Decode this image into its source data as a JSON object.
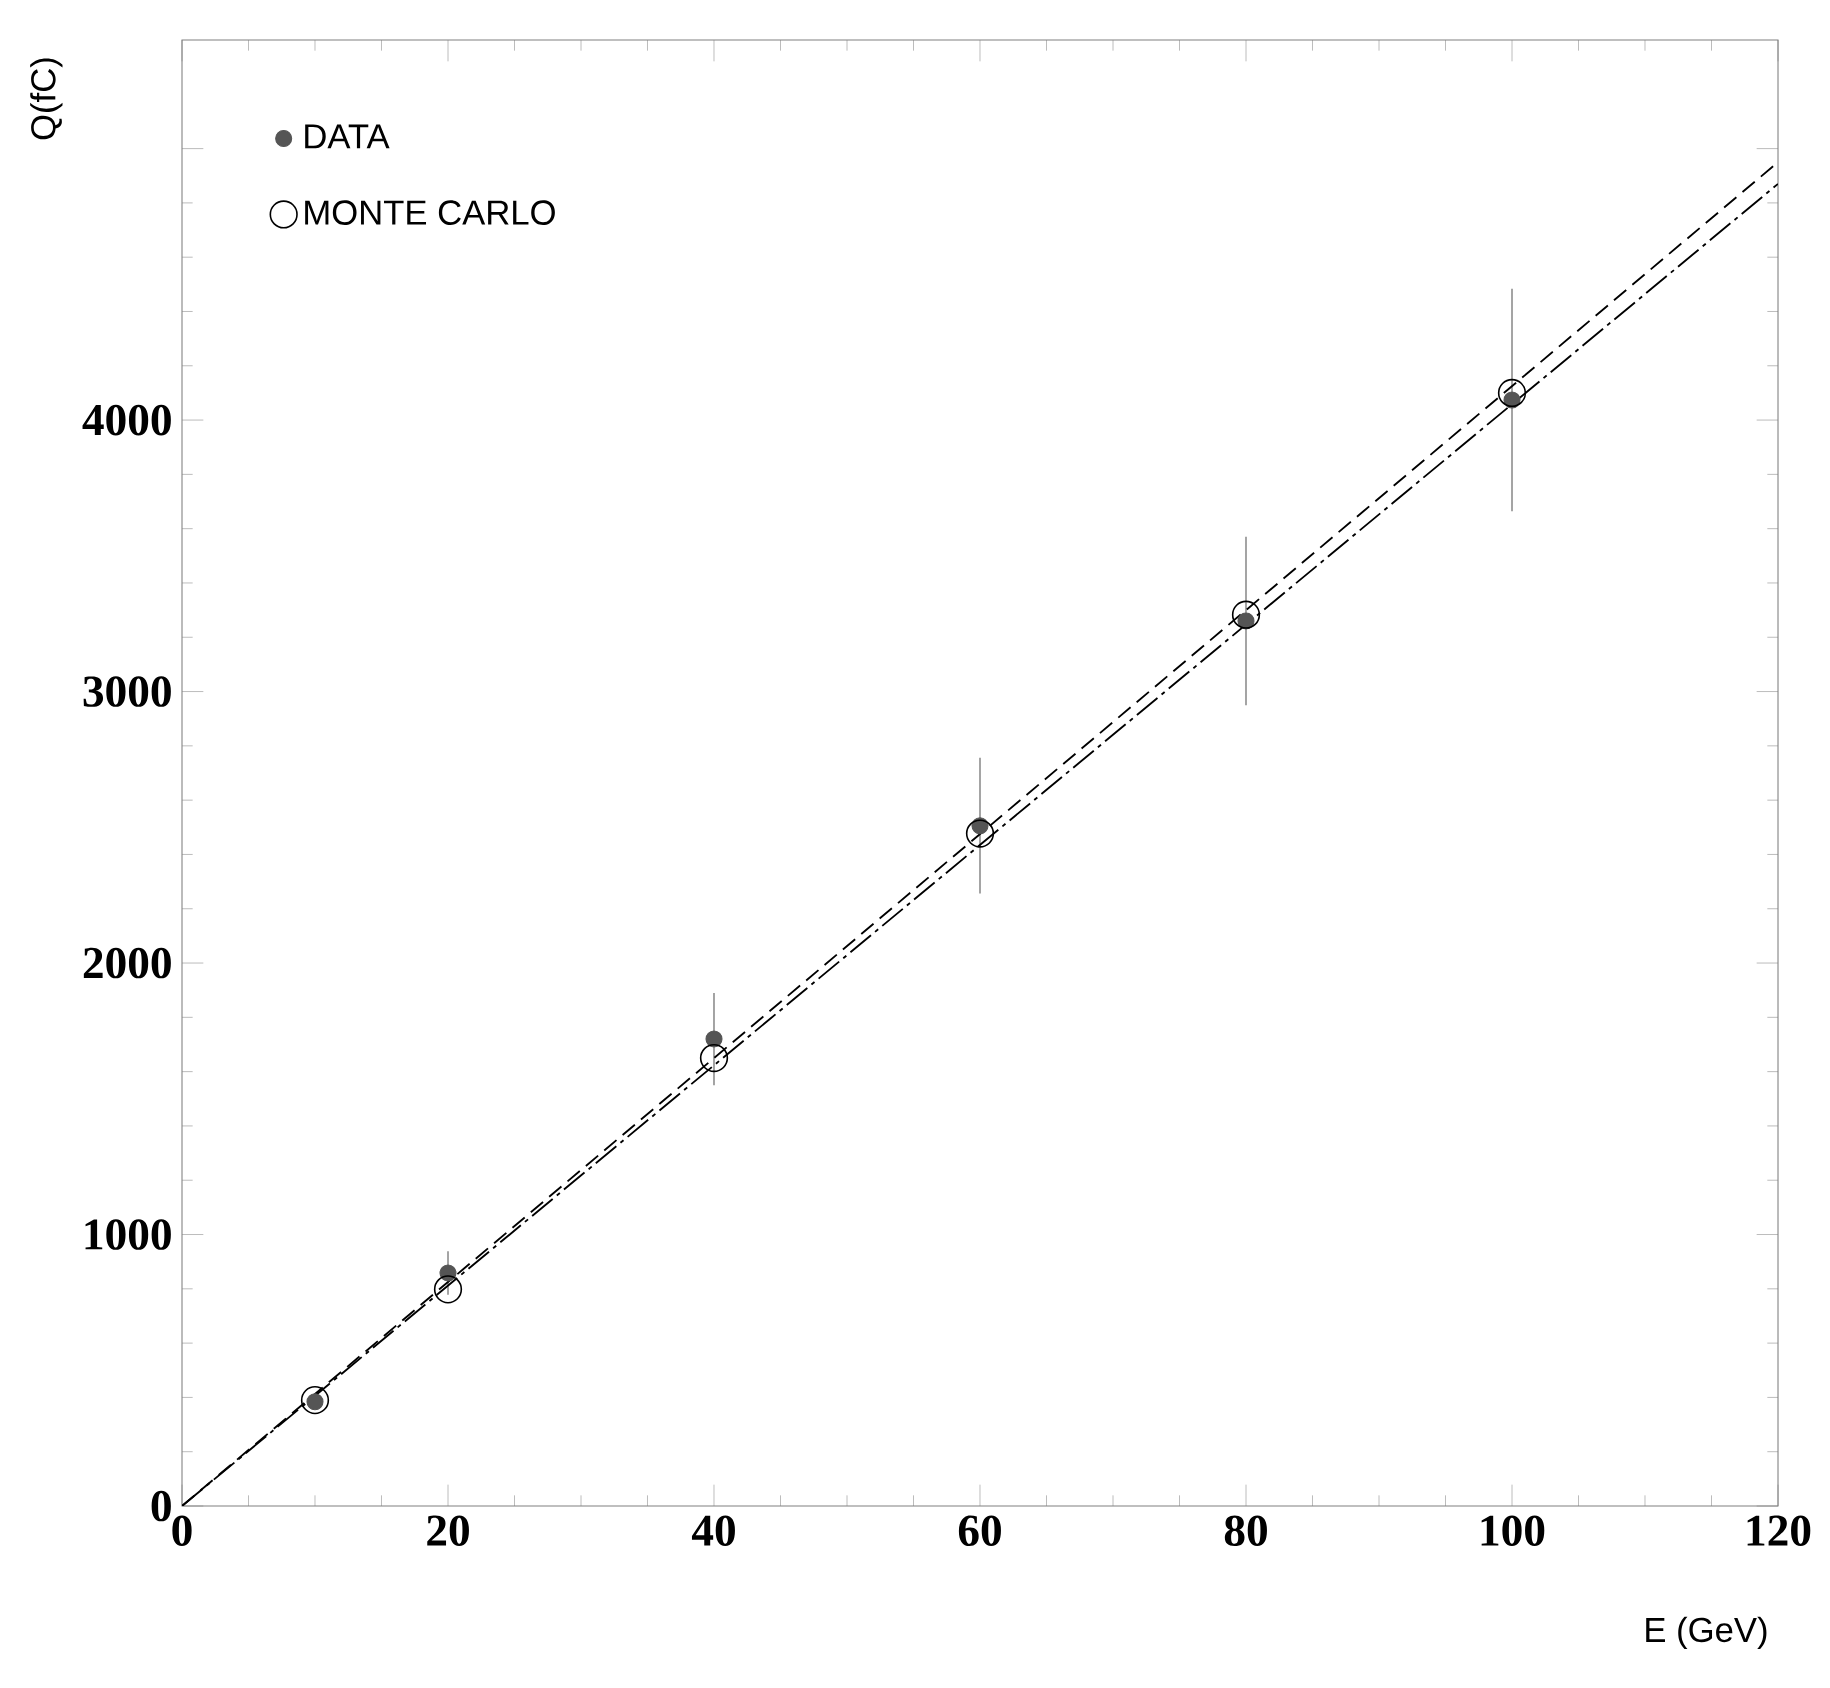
{
  "chart_data": {
    "type": "scatter",
    "xlabel": "E (GeV)",
    "ylabel": "Q(fC)",
    "xlim": [
      0,
      120
    ],
    "ylim": [
      0,
      5400
    ],
    "xticks": [
      0,
      20,
      40,
      60,
      80,
      100,
      120
    ],
    "yticks": [
      0,
      1000,
      2000,
      3000,
      4000,
      {
        "value": 5000,
        "label": null
      }
    ],
    "legend": "top left",
    "series": [
      {
        "name": "DATA",
        "color": "#555555",
        "marker": "circle",
        "x": [
          10,
          20,
          40,
          60,
          80,
          100
        ],
        "values": [
          384,
          858,
          1720,
          2506,
          3260,
          4074
        ],
        "errors": [
          null,
          80,
          170,
          250,
          310,
          410
        ]
      },
      {
        "name": "MONTE CARLO",
        "color": "#000000",
        "marker": "circle",
        "x": [
          10,
          20,
          40,
          60,
          80,
          100
        ],
        "values": [
          390,
          798,
          1650,
          2477,
          3283,
          4100
        ]
      },
      {
        "type": "line",
        "color": "#000000",
        "line_style": "dashed",
        "x": [
          0,
          120
        ],
        "values": [
          0,
          4950
        ]
      },
      {
        "type": "line",
        "color": "#000000",
        "line_style": "dotted",
        "x": [
          0,
          120
        ],
        "values": [
          0,
          4870
        ]
      }
    ]
  }
}
